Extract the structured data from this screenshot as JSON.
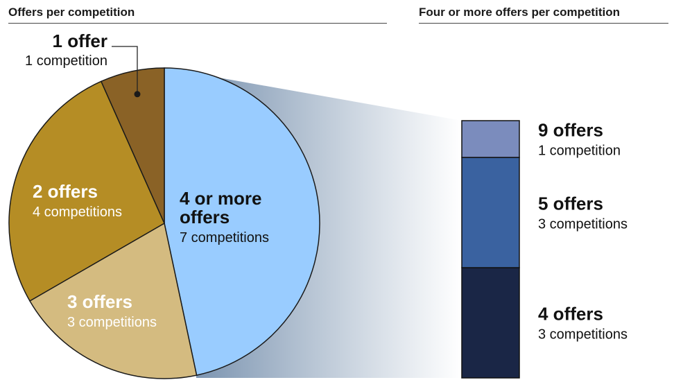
{
  "chart_data": [
    {
      "type": "pie",
      "title": "Offers per competition",
      "slices": [
        {
          "label": "4 or more offers",
          "value": 7,
          "value_label": "7 competitions",
          "color": "#99ccff"
        },
        {
          "label": "3 offers",
          "value": 3,
          "value_label": "3 competitions",
          "color": "#d4bb80"
        },
        {
          "label": "2 offers",
          "value": 4,
          "value_label": "4 competitions",
          "color": "#b58d25"
        },
        {
          "label": "1 offer",
          "value": 1,
          "value_label": "1 competition",
          "color": "#8a6226"
        }
      ]
    },
    {
      "type": "bar",
      "stacked": true,
      "title": "Four or more offers per competition",
      "segments": [
        {
          "label": "4 offers",
          "value": 3,
          "value_label": "3 competitions",
          "color": "#1a2646"
        },
        {
          "label": "5 offers",
          "value": 3,
          "value_label": "3 competitions",
          "color": "#3a62a0"
        },
        {
          "label": "9 offers",
          "value": 1,
          "value_label": "1 competition",
          "color": "#7b8cbd"
        }
      ]
    }
  ]
}
